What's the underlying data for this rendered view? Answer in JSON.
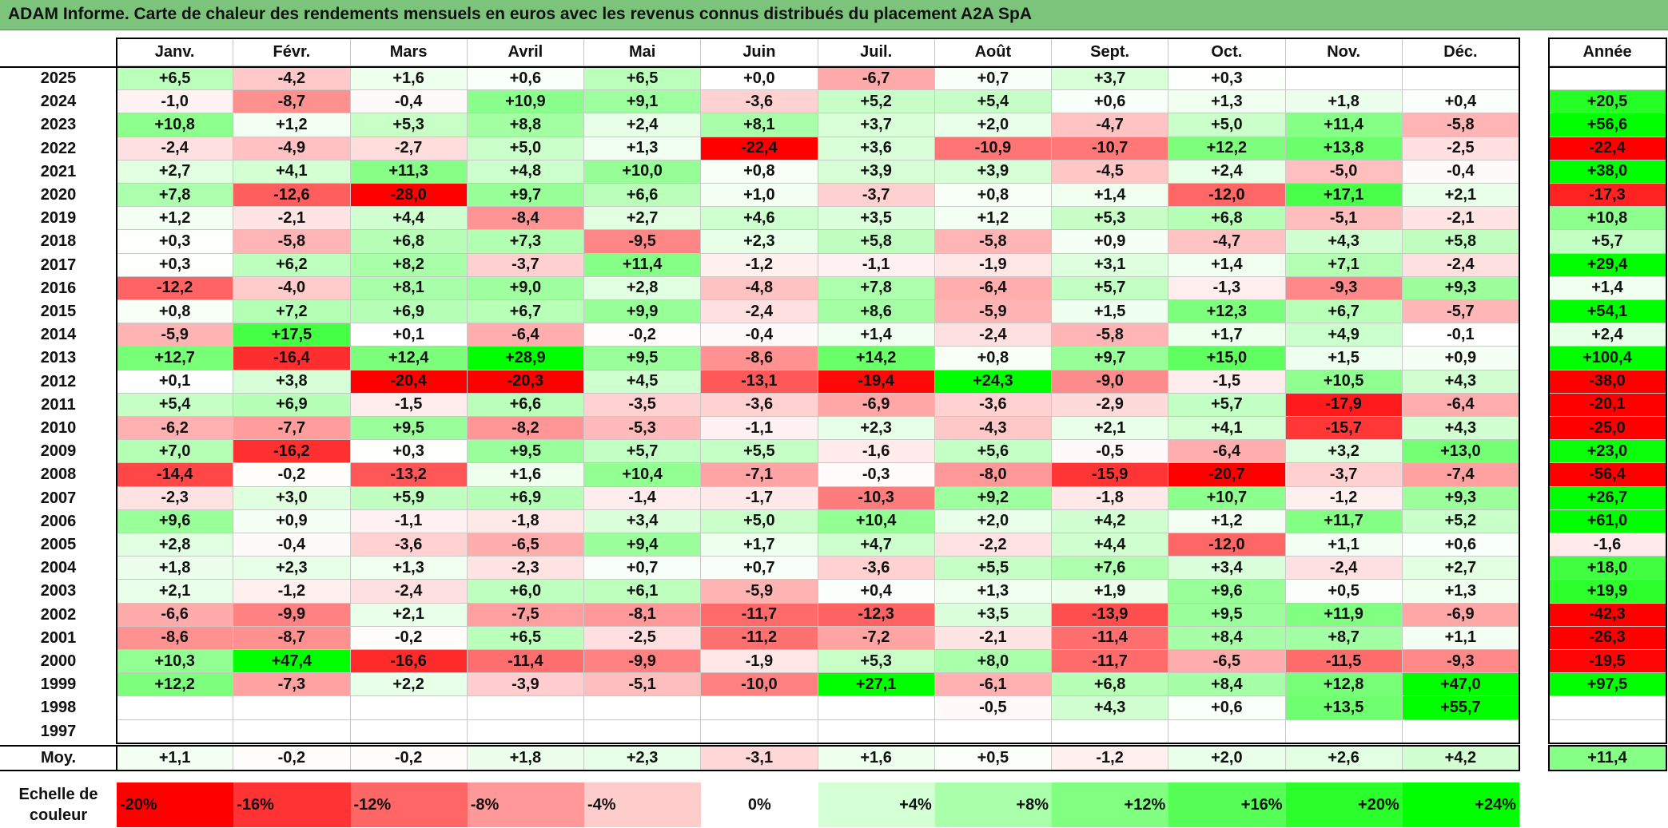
{
  "title": "ADAM Informe. Carte de chaleur des rendements mensuels en euros avec les revenus connus distribués du placement A2A SpA",
  "chart_data": {
    "type": "heatmap",
    "title": "ADAM Informe. Carte de chaleur des rendements mensuels en euros avec les revenus connus distribués du placement A2A SpA",
    "columns": [
      "Janv.",
      "Févr.",
      "Mars",
      "Avril",
      "Mai",
      "Juin",
      "Juil.",
      "Août",
      "Sept.",
      "Oct.",
      "Nov.",
      "Déc."
    ],
    "year_column_label": "Année",
    "rows": [
      {
        "year": "2025",
        "values": [
          "+6,5",
          "-4,2",
          "+1,6",
          "+0,6",
          "+6,5",
          "+0,0",
          "-6,7",
          "+0,7",
          "+3,7",
          "+0,3",
          "",
          ""
        ],
        "annual": ""
      },
      {
        "year": "2024",
        "values": [
          "-1,0",
          "-8,7",
          "-0,4",
          "+10,9",
          "+9,1",
          "-3,6",
          "+5,2",
          "+5,4",
          "+0,6",
          "+1,3",
          "+1,8",
          "+0,4"
        ],
        "annual": "+20,5"
      },
      {
        "year": "2023",
        "values": [
          "+10,8",
          "+1,2",
          "+5,3",
          "+8,8",
          "+2,4",
          "+8,1",
          "+3,7",
          "+2,0",
          "-4,7",
          "+5,0",
          "+11,4",
          "-5,8"
        ],
        "annual": "+56,6"
      },
      {
        "year": "2022",
        "values": [
          "-2,4",
          "-4,9",
          "-2,7",
          "+5,0",
          "+1,3",
          "-22,4",
          "+3,6",
          "-10,9",
          "-10,7",
          "+12,2",
          "+13,8",
          "-2,5"
        ],
        "annual": "-22,4"
      },
      {
        "year": "2021",
        "values": [
          "+2,7",
          "+4,1",
          "+11,3",
          "+4,8",
          "+10,0",
          "+0,8",
          "+3,9",
          "+3,9",
          "-4,5",
          "+2,4",
          "-5,0",
          "-0,4"
        ],
        "annual": "+38,0"
      },
      {
        "year": "2020",
        "values": [
          "+7,8",
          "-12,6",
          "-28,0",
          "+9,7",
          "+6,6",
          "+1,0",
          "-3,7",
          "+0,8",
          "+1,4",
          "-12,0",
          "+17,1",
          "+2,1"
        ],
        "annual": "-17,3"
      },
      {
        "year": "2019",
        "values": [
          "+1,2",
          "-2,1",
          "+4,4",
          "-8,4",
          "+2,7",
          "+4,6",
          "+3,5",
          "+1,2",
          "+5,3",
          "+6,8",
          "-5,1",
          "-2,1"
        ],
        "annual": "+10,8"
      },
      {
        "year": "2018",
        "values": [
          "+0,3",
          "-5,8",
          "+6,8",
          "+7,3",
          "-9,5",
          "+2,3",
          "+5,8",
          "-5,8",
          "+0,9",
          "-4,7",
          "+4,3",
          "+5,8"
        ],
        "annual": "+5,7"
      },
      {
        "year": "2017",
        "values": [
          "+0,3",
          "+6,2",
          "+8,2",
          "-3,7",
          "+11,4",
          "-1,2",
          "-1,1",
          "-1,9",
          "+3,1",
          "+1,4",
          "+7,1",
          "-2,4"
        ],
        "annual": "+29,4"
      },
      {
        "year": "2016",
        "values": [
          "-12,2",
          "-4,0",
          "+8,1",
          "+9,0",
          "+2,8",
          "-4,8",
          "+7,8",
          "-6,4",
          "+5,7",
          "-1,3",
          "-9,3",
          "+9,3"
        ],
        "annual": "+1,4"
      },
      {
        "year": "2015",
        "values": [
          "+0,8",
          "+7,2",
          "+6,9",
          "+6,7",
          "+9,9",
          "-2,4",
          "+8,6",
          "-5,9",
          "+1,5",
          "+12,3",
          "+6,7",
          "-5,7"
        ],
        "annual": "+54,1"
      },
      {
        "year": "2014",
        "values": [
          "-5,9",
          "+17,5",
          "+0,1",
          "-6,4",
          "-0,2",
          "-0,4",
          "+1,4",
          "-2,4",
          "-5,8",
          "+1,7",
          "+4,9",
          "-0,1"
        ],
        "annual": "+2,4"
      },
      {
        "year": "2013",
        "values": [
          "+12,7",
          "-16,4",
          "+12,4",
          "+28,9",
          "+9,5",
          "-8,6",
          "+14,2",
          "+0,8",
          "+9,7",
          "+15,0",
          "+1,5",
          "+0,9"
        ],
        "annual": "+100,4"
      },
      {
        "year": "2012",
        "values": [
          "+0,1",
          "+3,8",
          "-20,4",
          "-20,3",
          "+4,5",
          "-13,1",
          "-19,4",
          "+24,3",
          "-9,0",
          "-1,5",
          "+10,5",
          "+4,3"
        ],
        "annual": "-38,0"
      },
      {
        "year": "2011",
        "values": [
          "+5,4",
          "+6,9",
          "-1,5",
          "+6,6",
          "-3,5",
          "-3,6",
          "-6,9",
          "-3,6",
          "-2,9",
          "+5,7",
          "-17,9",
          "-6,4"
        ],
        "annual": "-20,1"
      },
      {
        "year": "2010",
        "values": [
          "-6,2",
          "-7,7",
          "+9,5",
          "-8,2",
          "-5,3",
          "-1,1",
          "+2,3",
          "-4,3",
          "+2,1",
          "+4,1",
          "-15,7",
          "+4,3"
        ],
        "annual": "-25,0"
      },
      {
        "year": "2009",
        "values": [
          "+7,0",
          "-16,2",
          "+0,3",
          "+9,5",
          "+5,7",
          "+5,5",
          "-1,6",
          "+5,6",
          "-0,5",
          "-6,4",
          "+3,2",
          "+13,0"
        ],
        "annual": "+23,0"
      },
      {
        "year": "2008",
        "values": [
          "-14,4",
          "-0,2",
          "-13,2",
          "+1,6",
          "+10,4",
          "-7,1",
          "-0,3",
          "-8,0",
          "-15,9",
          "-20,7",
          "-3,7",
          "-7,4"
        ],
        "annual": "-56,4"
      },
      {
        "year": "2007",
        "values": [
          "-2,3",
          "+3,0",
          "+5,9",
          "+6,9",
          "-1,4",
          "-1,7",
          "-10,3",
          "+9,2",
          "-1,8",
          "+10,7",
          "-1,2",
          "+9,3"
        ],
        "annual": "+26,7"
      },
      {
        "year": "2006",
        "values": [
          "+9,6",
          "+0,9",
          "-1,1",
          "-1,8",
          "+3,4",
          "+5,0",
          "+10,4",
          "+2,0",
          "+4,2",
          "+1,2",
          "+11,7",
          "+5,2"
        ],
        "annual": "+61,0"
      },
      {
        "year": "2005",
        "values": [
          "+2,8",
          "-0,4",
          "-3,6",
          "-6,5",
          "+9,4",
          "+1,7",
          "+4,7",
          "-2,2",
          "+4,4",
          "-12,0",
          "+1,1",
          "+0,6"
        ],
        "annual": "-1,6"
      },
      {
        "year": "2004",
        "values": [
          "+1,8",
          "+2,3",
          "+1,3",
          "-2,3",
          "+0,7",
          "+0,7",
          "-3,6",
          "+5,5",
          "+7,6",
          "+3,4",
          "-2,4",
          "+2,7"
        ],
        "annual": "+18,0"
      },
      {
        "year": "2003",
        "values": [
          "+2,1",
          "-1,2",
          "-2,4",
          "+6,0",
          "+6,1",
          "-5,9",
          "+0,4",
          "+1,3",
          "+1,9",
          "+9,6",
          "+0,5",
          "+1,3"
        ],
        "annual": "+19,9"
      },
      {
        "year": "2002",
        "values": [
          "-6,6",
          "-9,9",
          "+2,1",
          "-7,5",
          "-8,1",
          "-11,7",
          "-12,3",
          "+3,5",
          "-13,9",
          "+9,5",
          "+11,9",
          "-6,9"
        ],
        "annual": "-42,3"
      },
      {
        "year": "2001",
        "values": [
          "-8,6",
          "-8,7",
          "-0,2",
          "+6,5",
          "-2,5",
          "-11,2",
          "-7,2",
          "-2,1",
          "-11,4",
          "+8,4",
          "+8,7",
          "+1,1"
        ],
        "annual": "-26,3"
      },
      {
        "year": "2000",
        "values": [
          "+10,3",
          "+47,4",
          "-16,6",
          "-11,4",
          "-9,9",
          "-1,9",
          "+5,3",
          "+8,0",
          "-11,7",
          "-6,5",
          "-11,5",
          "-9,3"
        ],
        "annual": "-19,5"
      },
      {
        "year": "1999",
        "values": [
          "+12,2",
          "-7,3",
          "+2,2",
          "-3,9",
          "-5,1",
          "-10,0",
          "+27,1",
          "-6,1",
          "+6,8",
          "+8,4",
          "+12,8",
          "+47,0"
        ],
        "annual": "+97,5"
      },
      {
        "year": "1998",
        "values": [
          "",
          "",
          "",
          "",
          "",
          "",
          "",
          "-0,5",
          "+4,3",
          "+0,6",
          "+13,5",
          "+55,7"
        ],
        "annual": ""
      },
      {
        "year": "1997",
        "values": [
          "",
          "",
          "",
          "",
          "",
          "",
          "",
          "",
          "",
          "",
          "",
          ""
        ],
        "annual": ""
      }
    ],
    "average": {
      "label": "Moy.",
      "values": [
        "+1,1",
        "-0,2",
        "-0,2",
        "+1,8",
        "+2,3",
        "-3,1",
        "+1,6",
        "+0,5",
        "-1,2",
        "+2,0",
        "+2,6",
        "+4,2"
      ],
      "annual": "+11,4"
    },
    "color_scale": {
      "label_line1": "Echelle de",
      "label_line2": "couleur",
      "stops": [
        "-20%",
        "-16%",
        "-12%",
        "-8%",
        "-4%",
        "0%",
        "+4%",
        "+8%",
        "+12%",
        "+16%",
        "+20%",
        "+24%"
      ],
      "stop_values": [
        -20,
        -16,
        -12,
        -8,
        -4,
        0,
        4,
        8,
        12,
        16,
        20,
        24
      ]
    },
    "colors": {
      "negative_max": "#FF0000",
      "neutral": "#FFFFFF",
      "positive_max": "#00FF00",
      "title_bar": "#7CC47C"
    }
  }
}
